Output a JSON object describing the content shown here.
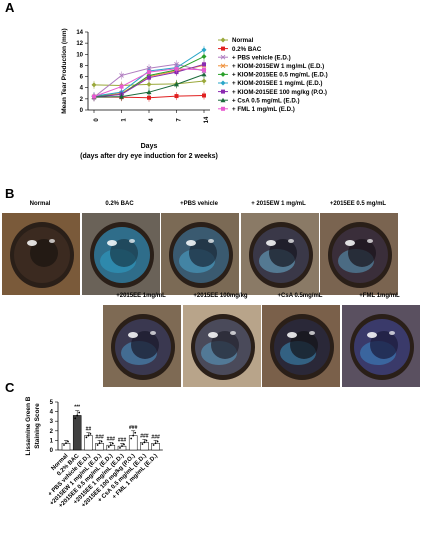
{
  "panels": {
    "a": "A",
    "b": "B",
    "c": "C"
  },
  "chart_a": {
    "type": "line",
    "ylabel": "Mean Tear Production  (mm)",
    "xlabel_line1": "Days",
    "xlabel_line2": "(days after dry eye induction for 2 weeks)",
    "x": [
      "0",
      "1",
      "4",
      "7",
      "14"
    ],
    "ylim": [
      0,
      14
    ],
    "yticks": [
      "0",
      "2",
      "4",
      "6",
      "8",
      "10",
      "12",
      "14"
    ],
    "series": [
      {
        "name": "Normal",
        "color": "#9aa83a",
        "marker": "diamond",
        "values": [
          4.5,
          4.4,
          4.6,
          4.7,
          5.2
        ]
      },
      {
        "name": "0.2% BAC",
        "color": "#e02020",
        "marker": "square",
        "values": [
          2.3,
          2.3,
          2.2,
          2.5,
          2.6
        ]
      },
      {
        "name": "+ PBS vehicle (E.D.)",
        "color": "#b07cc0",
        "marker": "x",
        "values": [
          2.3,
          6.2,
          7.5,
          8.2,
          7.0
        ]
      },
      {
        "name": "+ KIOM-2015EW 1 mg/mL (E.D.)",
        "color": "#f0903a",
        "marker": "x",
        "values": [
          2.4,
          3.0,
          6.0,
          7.0,
          8.0
        ]
      },
      {
        "name": "+ KIOM-2015EE 0.5 mg/mL (E.D.)",
        "color": "#2aa02a",
        "marker": "diamond",
        "values": [
          2.4,
          2.8,
          6.2,
          7.2,
          9.6
        ]
      },
      {
        "name": "+ KIOM-2015EE 1 mg/mL (E.D.)",
        "color": "#2aa6c8",
        "marker": "diamond",
        "values": [
          2.5,
          3.2,
          7.0,
          7.6,
          10.8
        ]
      },
      {
        "name": "+ KIOM-2015EE 100 mg/kg (P.O.)",
        "color": "#8a2ab0",
        "marker": "square",
        "values": [
          2.3,
          2.8,
          5.8,
          6.8,
          8.2
        ]
      },
      {
        "name": "+ CsA 0.5 mg/mL (E.D.)",
        "color": "#1a6a3a",
        "marker": "triangle",
        "values": [
          2.3,
          2.4,
          3.2,
          4.6,
          6.4
        ]
      },
      {
        "name": "+ FML 1 mg/mL (E.D.)",
        "color": "#e85ad0",
        "marker": "square",
        "values": [
          2.4,
          4.2,
          6.8,
          7.4,
          7.2
        ]
      }
    ]
  },
  "photos_row1": [
    "Normal",
    "0.2% BAC",
    "+PBS vehicle",
    "+ 2015EW 1 mg/mL",
    "+2015EE 0.5 mg/mL"
  ],
  "photos_row2": [
    "+2015EE 1mg/mL",
    "+2015EE 100mg/kg",
    "+CsA 0.5mg/mL",
    "+FML 1mg/mL"
  ],
  "chart_c": {
    "type": "bar",
    "ylabel_line1": "Lissamine Green B",
    "ylabel_line2": "Staining Score",
    "ylim": [
      0,
      5
    ],
    "yticks": [
      "0",
      "1",
      "2",
      "3",
      "4",
      "5"
    ],
    "categories": [
      "Normal",
      "0.2% BAC",
      "+ PBS vehicle (E.D.)",
      "+2015EW 1 mg/mL (E.D.)",
      "+2015EE 0.5 mg/mL (E.D.)",
      "+2015EE 1 mg/mL (E.D.)",
      "+2015EE 100 mg/kg (P.O.)",
      "+ CsA 0.5 mg/mL (E.D.)",
      "+ FML 1 mg/mL (E.D.)"
    ],
    "values": [
      0.7,
      3.6,
      1.5,
      0.7,
      0.5,
      0.4,
      1.5,
      0.8,
      0.7
    ],
    "errors": [
      0.3,
      0.5,
      0.3,
      0.3,
      0.3,
      0.3,
      0.5,
      0.3,
      0.3
    ],
    "sig": [
      "",
      "***",
      "##",
      "###",
      "###",
      "###",
      "###",
      "###",
      "###"
    ],
    "bar_colors": [
      "#ffffff",
      "#404040",
      "#ffffff",
      "#ffffff",
      "#ffffff",
      "#ffffff",
      "#ffffff",
      "#ffffff",
      "#ffffff"
    ]
  }
}
